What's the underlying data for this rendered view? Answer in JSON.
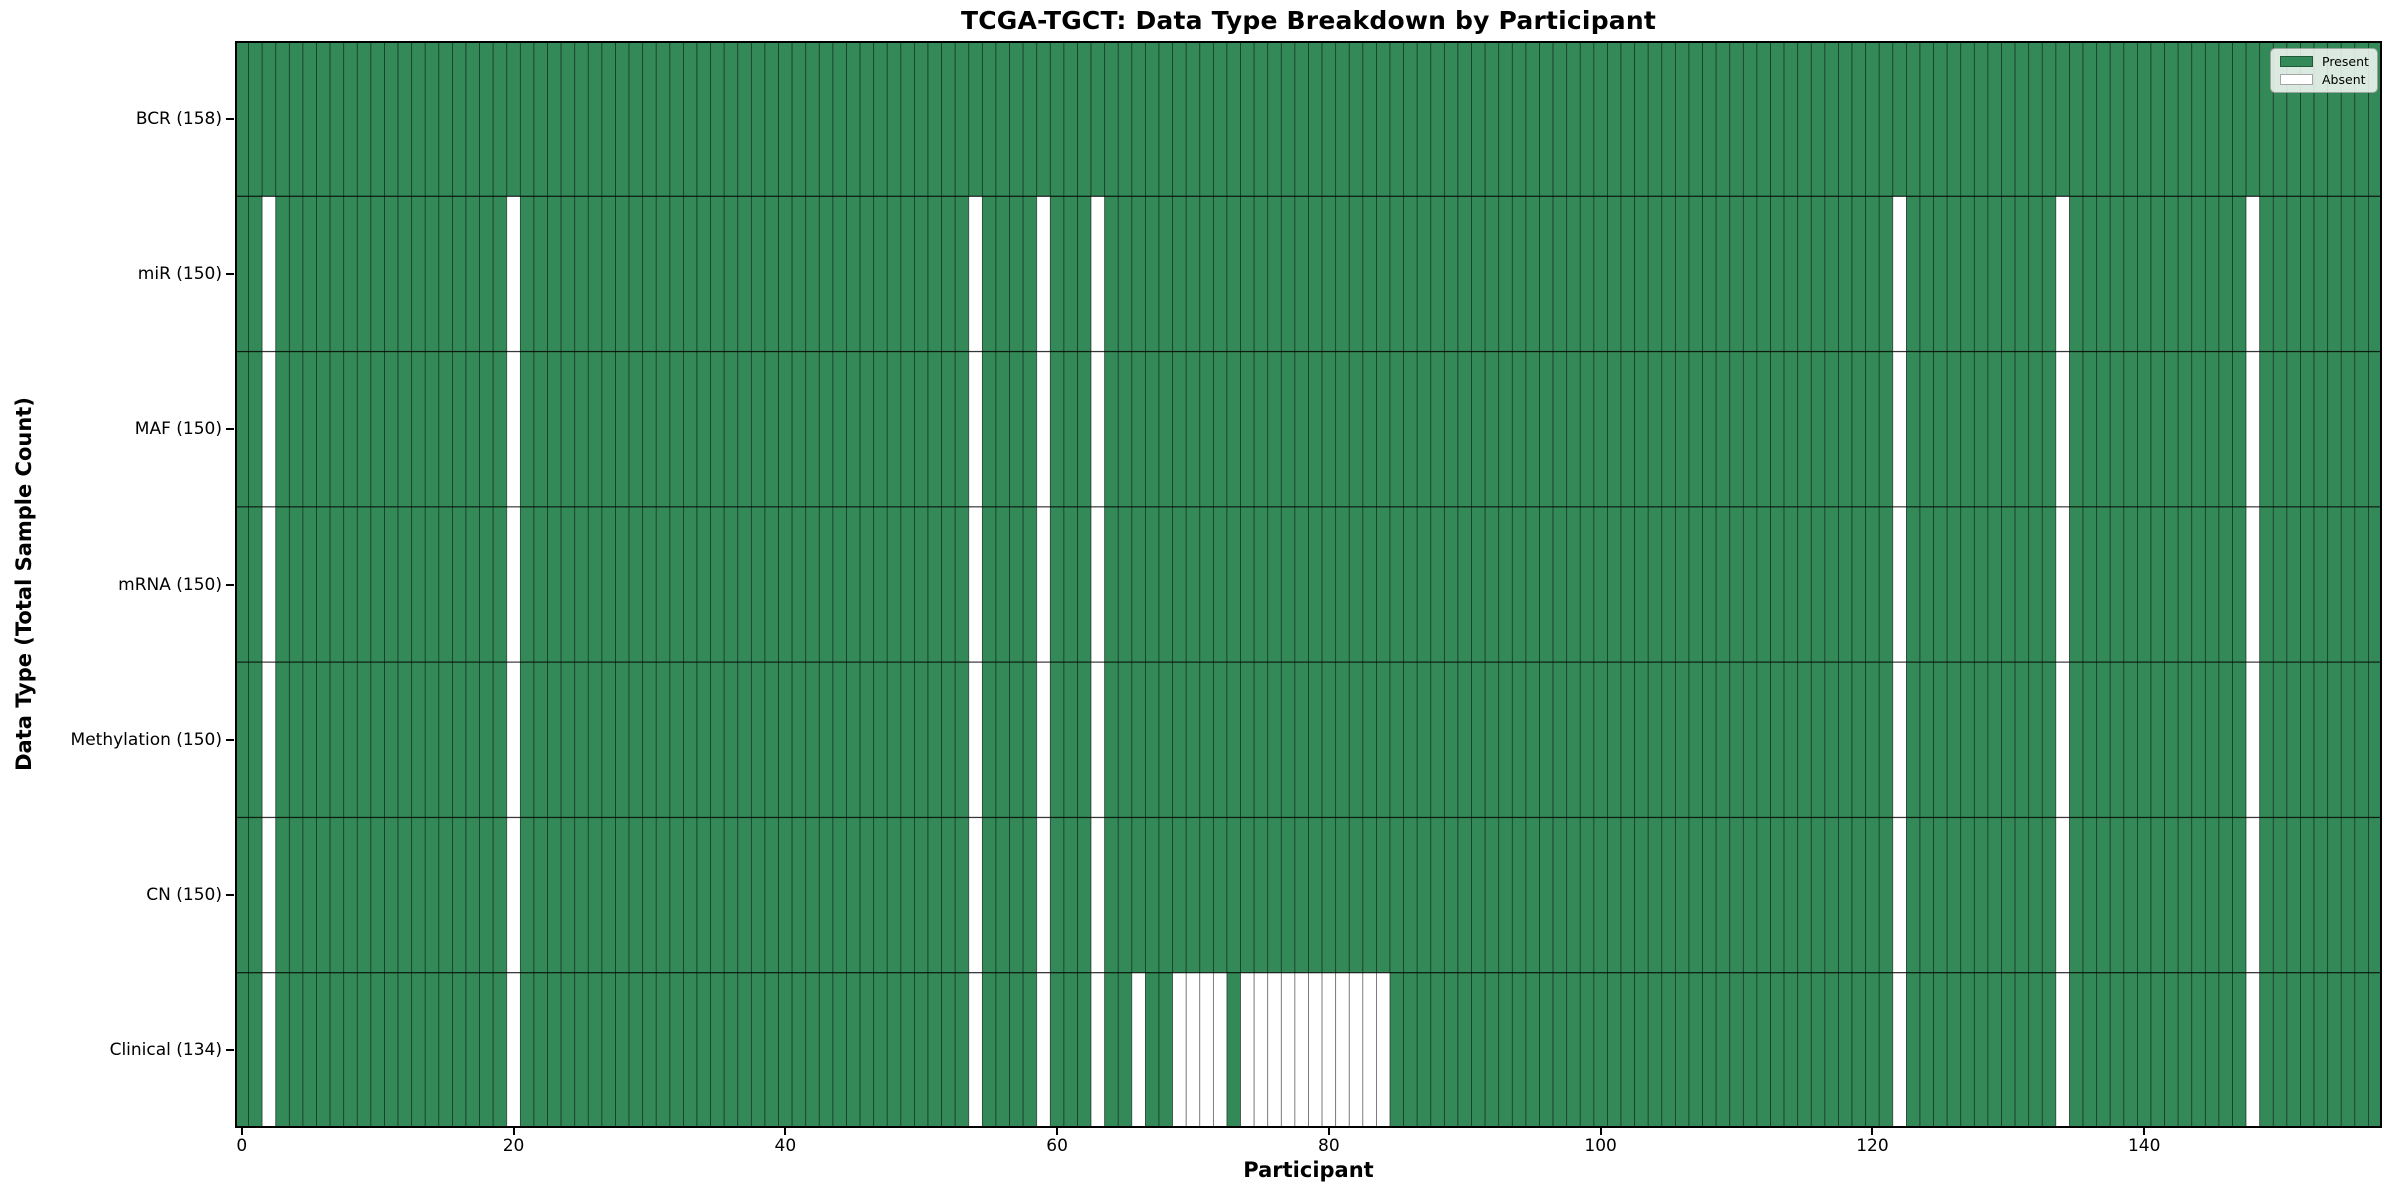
{
  "chart_data": {
    "type": "heatmap",
    "title": "TCGA-TGCT: Data Type Breakdown by Participant",
    "xlabel": "Participant",
    "ylabel": "Data Type (Total Sample Count)",
    "n_participants": 158,
    "x_ticks": [
      0,
      20,
      40,
      60,
      80,
      100,
      120,
      140
    ],
    "legend_position": "upper right",
    "grid": true,
    "rows": [
      {
        "name": "BCR",
        "label": "BCR (158)",
        "total": 158,
        "absent": []
      },
      {
        "name": "miR",
        "label": "miR (150)",
        "total": 150,
        "absent": [
          2,
          20,
          54,
          59,
          63,
          122,
          134,
          148
        ]
      },
      {
        "name": "MAF",
        "label": "MAF (150)",
        "total": 150,
        "absent": [
          2,
          20,
          54,
          59,
          63,
          122,
          134,
          148
        ]
      },
      {
        "name": "mRNA",
        "label": "mRNA (150)",
        "total": 150,
        "absent": [
          2,
          20,
          54,
          59,
          63,
          122,
          134,
          148
        ]
      },
      {
        "name": "Methylation",
        "label": "Methylation (150)",
        "total": 150,
        "absent": [
          2,
          20,
          54,
          59,
          63,
          122,
          134,
          148
        ]
      },
      {
        "name": "CN",
        "label": "CN (150)",
        "total": 150,
        "absent": [
          2,
          20,
          54,
          59,
          63,
          122,
          134,
          148
        ]
      },
      {
        "name": "Clinical",
        "label": "Clinical (134)",
        "total": 134,
        "absent": [
          2,
          20,
          54,
          59,
          63,
          66,
          69,
          70,
          71,
          72,
          74,
          75,
          76,
          77,
          78,
          79,
          80,
          81,
          82,
          83,
          84,
          122,
          134,
          148
        ]
      }
    ],
    "legend": [
      {
        "label": "Present",
        "color": "#338957"
      },
      {
        "label": "Absent",
        "color": "#ffffff"
      }
    ],
    "colors": {
      "present": "#338957",
      "absent": "#ffffff",
      "cell_edge": "rgba(0,0,0,0.5)",
      "row_divider": "rgba(0,0,0,0.55)",
      "axis": "#000000",
      "background": "#ffffff"
    }
  }
}
